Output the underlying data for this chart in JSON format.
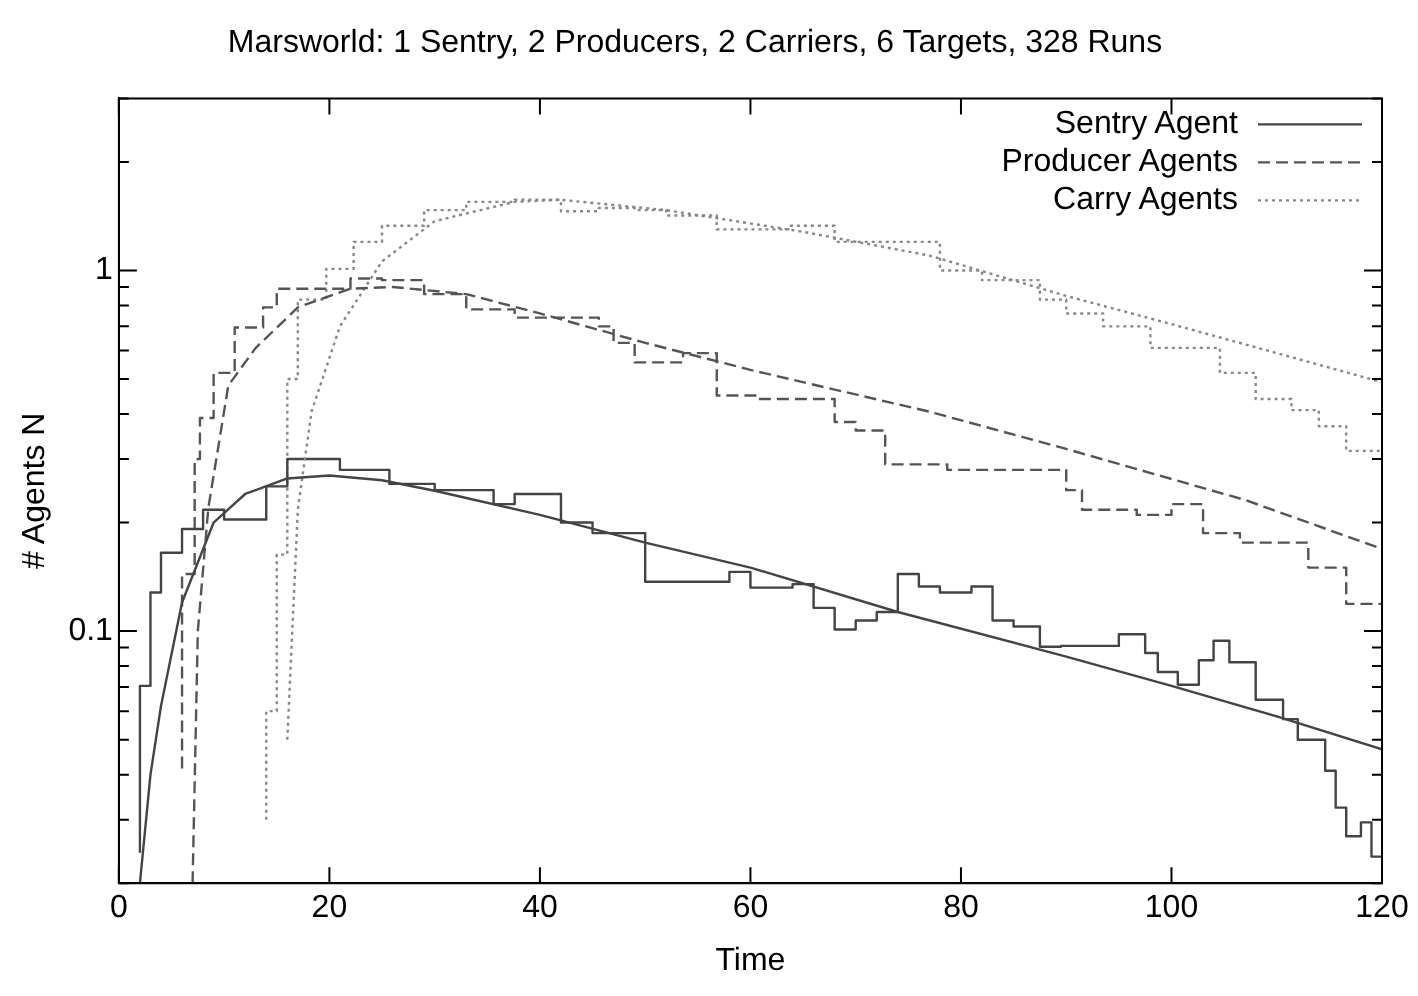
{
  "chart_data": {
    "type": "line",
    "title": "Marsworld: 1 Sentry, 2 Producers, 2 Carriers, 6 Targets, 328 Runs",
    "xlabel": "Time",
    "ylabel": "# Agents N",
    "xlim": [
      0,
      120
    ],
    "xticks": [
      0,
      20,
      40,
      60,
      80,
      100,
      120
    ],
    "ylim": [
      0.02,
      3
    ],
    "log": "y",
    "grid": false,
    "legend": "top right",
    "yticks": [
      {
        "value": 0.02,
        "label": null
      },
      {
        "value": 0.03,
        "label": null
      },
      {
        "value": 0.04,
        "label": null
      },
      {
        "value": 0.05,
        "label": null
      },
      {
        "value": 0.06,
        "label": null
      },
      {
        "value": 0.07,
        "label": null
      },
      {
        "value": 0.08,
        "label": null
      },
      {
        "value": 0.09,
        "label": null
      },
      0.1,
      {
        "value": 0.2,
        "label": null
      },
      {
        "value": 0.3,
        "label": null
      },
      {
        "value": 0.4,
        "label": null
      },
      {
        "value": 0.5,
        "label": null
      },
      {
        "value": 0.6,
        "label": null
      },
      {
        "value": 0.7,
        "label": null
      },
      {
        "value": 0.8,
        "label": null
      },
      {
        "value": 0.9,
        "label": null
      },
      1,
      {
        "value": 2,
        "label": null
      },
      {
        "value": 3,
        "label": null
      }
    ],
    "series": [
      {
        "name": "Sentry Agent",
        "type": "line",
        "color": "#444444",
        "line_style": "solid",
        "x": [
          2,
          3,
          4,
          6,
          9,
          12,
          16,
          20,
          25,
          30,
          40,
          50,
          60,
          74,
          90,
          100,
          110,
          120
        ],
        "values": [
          0.02,
          0.04,
          0.062,
          0.12,
          0.2,
          0.24,
          0.265,
          0.27,
          0.262,
          0.245,
          0.21,
          0.176,
          0.15,
          0.113,
          0.085,
          0.0705,
          0.058,
          0.047
        ]
      },
      {
        "name": "Producer Agents",
        "type": "line",
        "color": "#555555",
        "line_style": "dashed",
        "x": [
          7,
          7.5,
          8.5,
          10.4,
          13,
          17,
          22,
          26,
          33,
          40,
          50,
          60,
          77,
          90,
          107,
          120
        ],
        "values": [
          0.02,
          0.1,
          0.22,
          0.48,
          0.61,
          0.79,
          0.89,
          0.9,
          0.86,
          0.76,
          0.63,
          0.53,
          0.406,
          0.32,
          0.231,
          0.169
        ]
      },
      {
        "name": "Carry Agents",
        "type": "line",
        "color": "#888888",
        "line_style": "dotted",
        "x": [
          16,
          17,
          18.3,
          21,
          25,
          30,
          37.6,
          42,
          52,
          65,
          77,
          90,
          100,
          110,
          120
        ],
        "values": [
          0.05,
          0.217,
          0.406,
          0.7,
          1.06,
          1.37,
          1.55,
          1.57,
          1.47,
          1.28,
          1.1,
          0.85,
          0.71,
          0.59,
          0.49
        ]
      },
      {
        "type": "step",
        "color": "#444444",
        "line_style": "solid",
        "x": [
          2,
          3,
          4,
          6,
          8,
          10,
          14,
          16,
          21,
          25.7,
          30,
          35.6,
          37.6,
          42,
          45,
          50,
          58,
          60,
          64,
          66,
          68,
          70,
          72,
          74,
          76,
          78,
          81,
          83,
          85,
          87.5,
          89.5,
          92,
          95,
          97.5,
          98.7,
          100.6,
          102.6,
          104,
          105.5,
          108,
          110.6,
          112,
          114.6,
          115.6,
          116.6,
          118,
          119,
          119.6,
          120
        ],
        "values": [
          0.0243,
          0.0705,
          0.128,
          0.165,
          0.192,
          0.217,
          0.204,
          0.252,
          0.3,
          0.28,
          0.256,
          0.246,
          0.225,
          0.24,
          0.2,
          0.187,
          0.137,
          0.146,
          0.132,
          0.135,
          0.116,
          0.101,
          0.107,
          0.113,
          0.144,
          0.133,
          0.128,
          0.133,
          0.107,
          0.103,
          0.0905,
          0.091,
          0.091,
          0.098,
          0.087,
          0.077,
          0.071,
          0.083,
          0.094,
          0.082,
          0.0645,
          0.057,
          0.05,
          0.041,
          0.0324,
          0.027,
          0.0295,
          0.0237,
          0.0237
        ]
      },
      {
        "type": "step",
        "color": "#555555",
        "line_style": "dashed",
        "x": [
          6,
          7.2,
          7.7,
          9,
          11,
          13.7,
          15,
          19,
          22,
          25,
          29,
          33,
          37.6,
          45.6,
          47,
          49,
          53.6,
          56.8,
          60.8,
          68,
          70,
          72.8,
          76,
          78.7,
          90,
          91.5,
          96.7,
          100,
          103,
          106.5,
          113,
          116.6,
          119.6,
          120
        ],
        "values": [
          0.0416,
          0.144,
          0.3,
          0.39,
          0.52,
          0.695,
          0.79,
          0.89,
          0.89,
          0.95,
          0.94,
          0.86,
          0.78,
          0.74,
          0.7,
          0.63,
          0.556,
          0.59,
          0.45,
          0.44,
          0.38,
          0.36,
          0.29,
          0.29,
          0.28,
          0.246,
          0.217,
          0.21,
          0.225,
          0.187,
          0.176,
          0.15,
          0.119,
          0.119
        ]
      },
      {
        "type": "step",
        "color": "#888888",
        "line_style": "dotted",
        "x": [
          14,
          15,
          16,
          17,
          19.7,
          22.3,
          25,
          29,
          33,
          37.6,
          42,
          45.6,
          49,
          52,
          56.8,
          63.6,
          68,
          75.5,
          78,
          82,
          87.5,
          90,
          93.5,
          98,
          104.6,
          108,
          111.4,
          114,
          116.6,
          119.4,
          120
        ],
        "values": [
          0.03,
          0.06,
          0.163,
          0.5,
          0.83,
          1.01,
          1.2,
          1.33,
          1.47,
          1.55,
          1.57,
          1.46,
          1.49,
          1.47,
          1.42,
          1.3,
          1.33,
          1.2,
          1.2,
          1.0,
          0.94,
          0.83,
          0.76,
          0.7,
          0.61,
          0.52,
          0.44,
          0.41,
          0.37,
          0.316,
          0.316
        ]
      }
    ]
  }
}
